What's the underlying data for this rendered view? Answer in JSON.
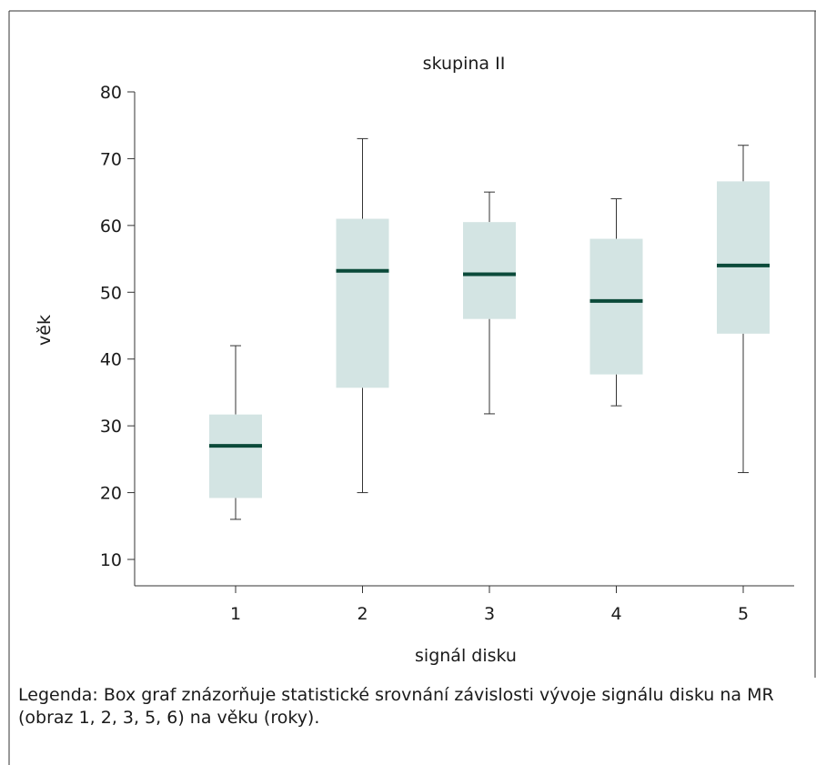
{
  "chart_data": {
    "type": "boxplot",
    "title": "skupina II",
    "xlabel": "signál disku",
    "ylabel": "věk",
    "ylim": [
      5,
      80
    ],
    "yticks": [
      10,
      20,
      30,
      40,
      50,
      60,
      70,
      80
    ],
    "categories": [
      "1",
      "2",
      "3",
      "4",
      "5"
    ],
    "boxes": [
      {
        "category": "1",
        "min": 16,
        "q1": 19.2,
        "median": 27,
        "q3": 31.7,
        "max": 42
      },
      {
        "category": "2",
        "min": 20,
        "q1": 35.7,
        "median": 53.2,
        "q3": 61,
        "max": 73
      },
      {
        "category": "3",
        "min": 31.8,
        "q1": 46,
        "median": 52.7,
        "q3": 60.5,
        "max": 65
      },
      {
        "category": "4",
        "min": 33,
        "q1": 37.7,
        "median": 48.7,
        "q3": 58,
        "max": 64
      },
      {
        "category": "5",
        "min": 23,
        "q1": 43.8,
        "median": 54,
        "q3": 66.6,
        "max": 72
      }
    ],
    "box_color": "#d3e4e3",
    "median_color": "#0b4a3a",
    "grid": false
  },
  "caption": "Legenda: Box graf znázorňuje statistické srovnání závislosti vývoje signálu disku na MR (obraz 1, 2, 3, 5, 6) na věku (roky)."
}
